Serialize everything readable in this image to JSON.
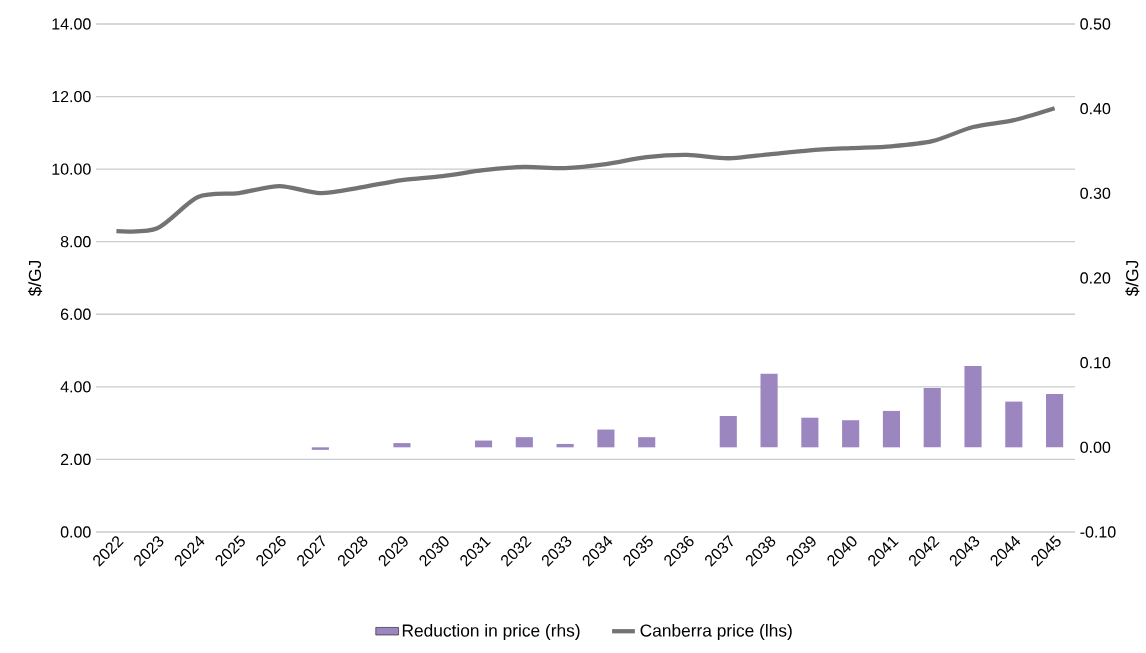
{
  "chart_data": {
    "type": "bar",
    "categories": [
      "2022",
      "2023",
      "2024",
      "2025",
      "2026",
      "2027",
      "2028",
      "2029",
      "2030",
      "2031",
      "2032",
      "2033",
      "2034",
      "2035",
      "2036",
      "2037",
      "2038",
      "2039",
      "2040",
      "2041",
      "2042",
      "2043",
      "2044",
      "2045"
    ],
    "series": [
      {
        "name": "Reduction in price (rhs)",
        "axis": "y2",
        "color": "#9b86c0",
        "values": [
          null,
          null,
          null,
          null,
          null,
          -0.003,
          null,
          0.005,
          null,
          0.008,
          0.012,
          0.004,
          0.021,
          0.012,
          null,
          0.037,
          0.087,
          0.035,
          0.032,
          0.043,
          0.07,
          0.096,
          0.054,
          0.063
        ]
      },
      {
        "name": "Canberra price (lhs)",
        "type": "line",
        "color": "#737373",
        "values": [
          8.29,
          8.37,
          9.23,
          9.34,
          9.53,
          9.34,
          9.5,
          9.7,
          9.81,
          9.97,
          10.06,
          10.03,
          10.14,
          10.33,
          10.39,
          10.3,
          10.41,
          10.52,
          10.58,
          10.63,
          10.77,
          11.16,
          11.35,
          11.68
        ]
      }
    ],
    "ylabel": "$/GJ",
    "y2label": "$/GJ",
    "ylim": [
      0,
      14
    ],
    "yticks": [
      {
        "value": 0,
        "label": "0.00"
      },
      {
        "value": 2,
        "label": "2.00"
      },
      {
        "value": 4,
        "label": "4.00"
      },
      {
        "value": 6,
        "label": "6.00"
      },
      {
        "value": 8,
        "label": "8.00"
      },
      {
        "value": 10,
        "label": "10.00"
      },
      {
        "value": 12,
        "label": "12.00"
      },
      {
        "value": 14,
        "label": "14.00"
      }
    ],
    "y2lim": [
      -0.1,
      0.5
    ],
    "y2ticks": [
      {
        "value": -0.1,
        "label": "-0.10"
      },
      {
        "value": 0,
        "label": "0.00"
      },
      {
        "value": 0.1,
        "label": "0.10"
      },
      {
        "value": 0.2,
        "label": "0.20"
      },
      {
        "value": 0.3,
        "label": "0.30"
      },
      {
        "value": 0.4,
        "label": "0.40"
      },
      {
        "value": 0.5,
        "label": "0.50"
      }
    ],
    "grid": "y",
    "legend": "bottom"
  }
}
